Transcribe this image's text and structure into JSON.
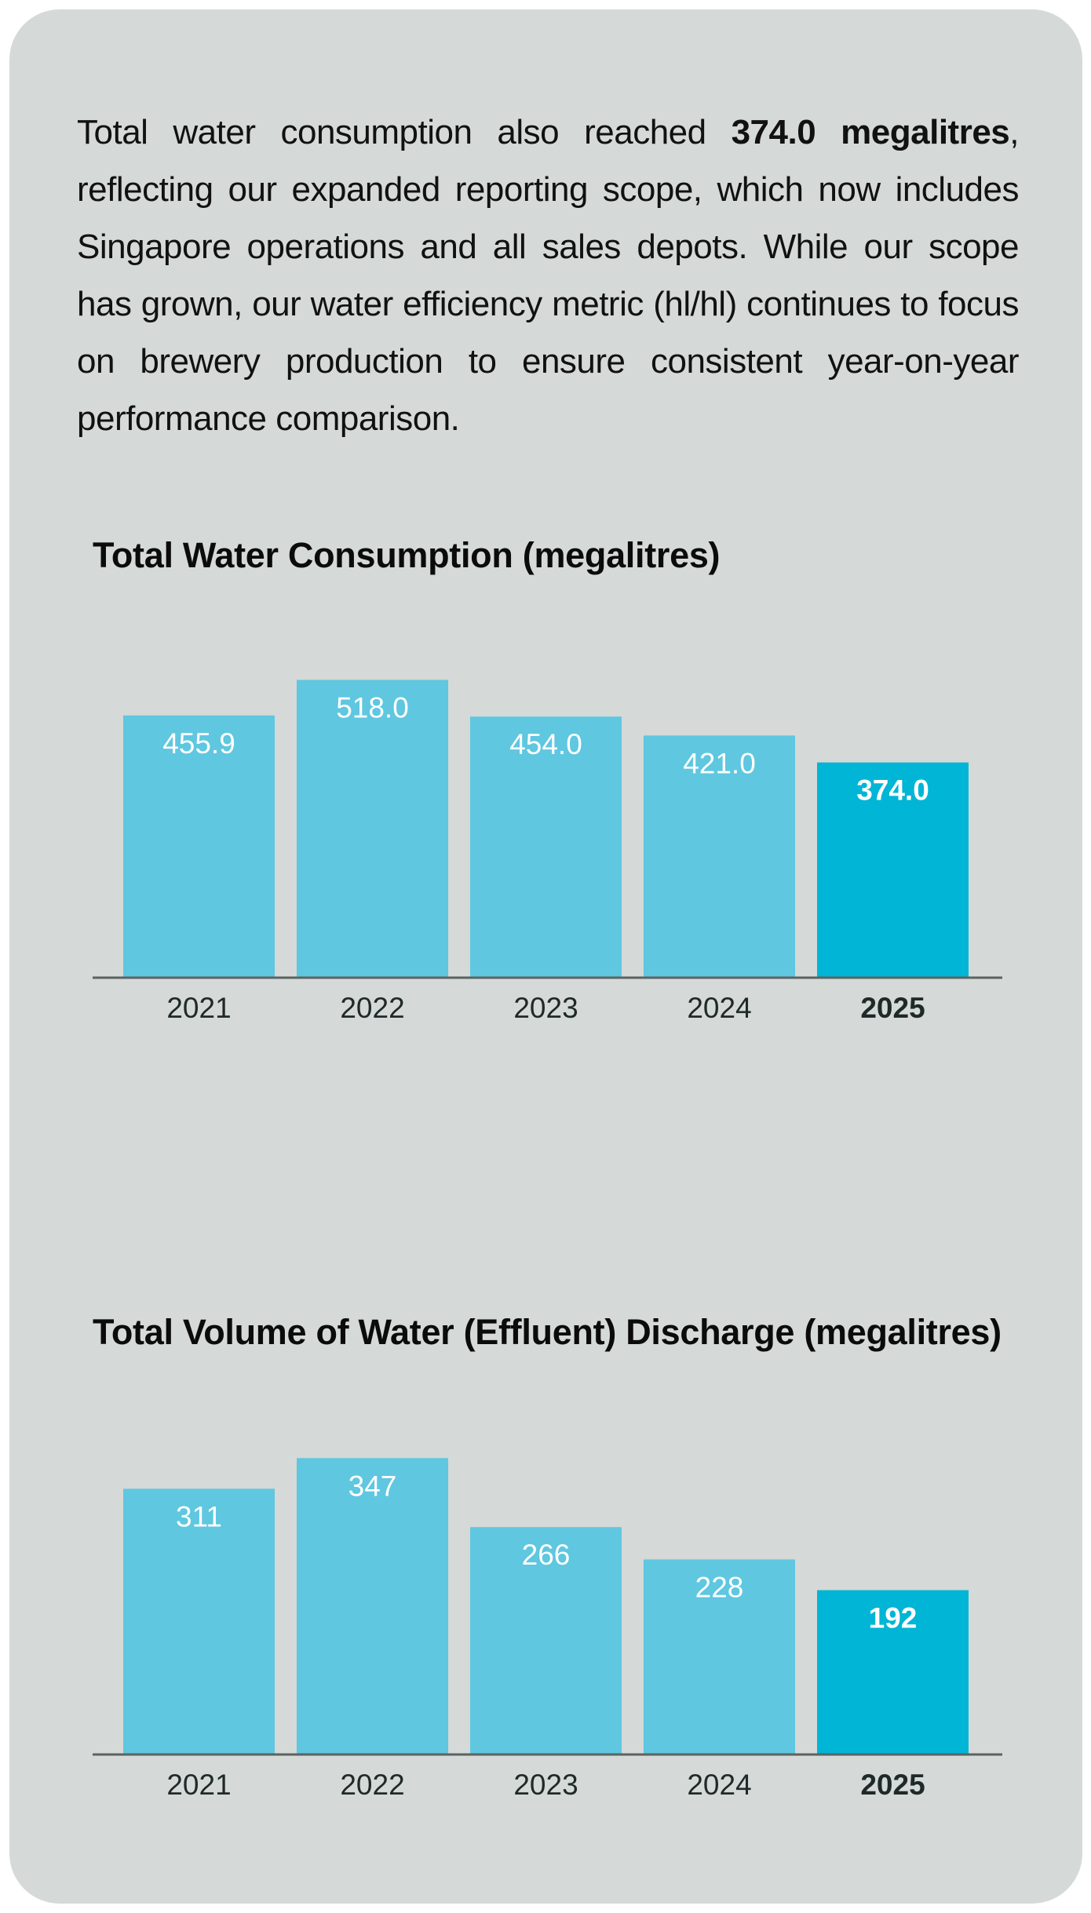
{
  "intro": {
    "prefix": "Total water consumption also reached ",
    "highlight": "374.0 megalitres",
    "suffix": ", reflecting our expanded reporting scope, which now includes Singapore operations and all sales depots. While our scope has grown, our water efficiency metric (hl/hl) continues to focus on brewery production to ensure consistent year-on-year performance comparison."
  },
  "colors": {
    "bar": "#5fc7e0",
    "bar_highlight": "#00b5d5",
    "axis": "#5b6360",
    "tick_text": "#1f2a28",
    "label_text": "#ffffff"
  },
  "chart_data": [
    {
      "type": "bar",
      "title": "Total Water Consumption (megalitres)",
      "xlabel": "",
      "ylabel": "",
      "categories": [
        "2021",
        "2022",
        "2023",
        "2024",
        "2025"
      ],
      "values": [
        455.9,
        518.0,
        454.0,
        421.0,
        374.0
      ],
      "labels": [
        "455.9",
        "518.0",
        "454.0",
        "421.0",
        "374.0"
      ],
      "highlight_index": 4,
      "ylim": [
        0,
        520
      ],
      "grid": false,
      "legend": "none"
    },
    {
      "type": "bar",
      "title": "Total Volume of Water (Effluent) Discharge (megalitres)",
      "xlabel": "",
      "ylabel": "",
      "categories": [
        "2021",
        "2022",
        "2023",
        "2024",
        "2025"
      ],
      "values": [
        311,
        347,
        266,
        228,
        192
      ],
      "labels": [
        "311",
        "347",
        "266",
        "228",
        "192"
      ],
      "highlight_index": 4,
      "ylim": [
        0,
        350
      ],
      "grid": false,
      "legend": "none"
    }
  ]
}
